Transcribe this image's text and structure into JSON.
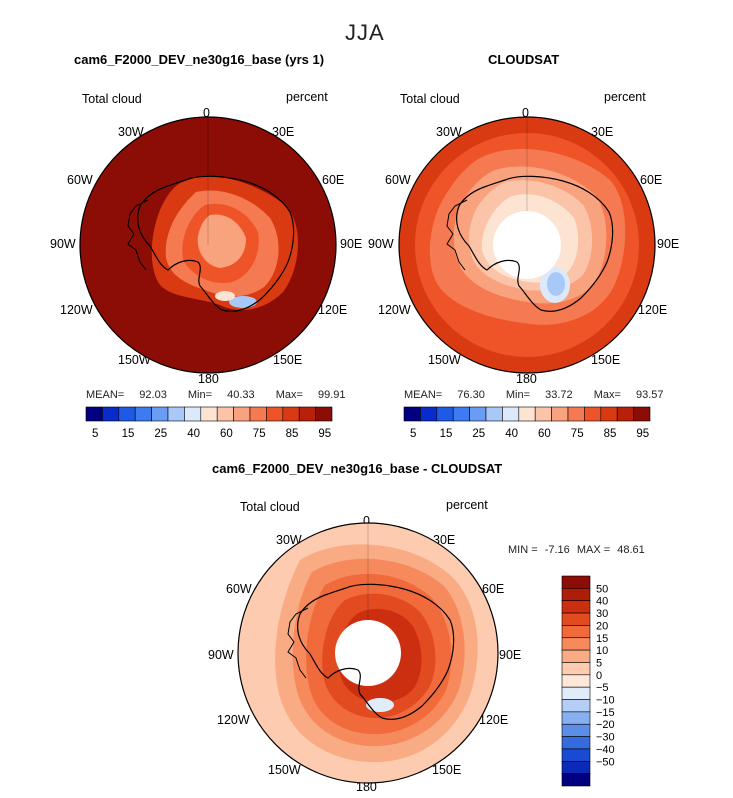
{
  "page_title": "JJA",
  "chart_data": [
    {
      "type": "heatmap",
      "title": "cam6_F2000_DEV_ne30g16_base (yrs 1)",
      "variable": "Total cloud",
      "units": "percent",
      "projection": "polar stereographic (south pole)",
      "longitude_labels": [
        "0",
        "30E",
        "60E",
        "90E",
        "120E",
        "150E",
        "180",
        "150W",
        "120W",
        "90W",
        "60W",
        "30W"
      ],
      "stats": {
        "mean_label": "MEAN=",
        "mean": "92.03",
        "min_label": "Min=",
        "min": "40.33",
        "max_label": "Max=",
        "max": "99.91"
      },
      "colorbar": {
        "orientation": "horizontal",
        "colors": [
          "#000080",
          "#0a2bcc",
          "#1e5ae6",
          "#3c7cf0",
          "#6a9cf4",
          "#a8c8f7",
          "#dce9fa",
          "#fde3d2",
          "#fbc4a8",
          "#f9a27e",
          "#f57a52",
          "#ee5428",
          "#d93a12",
          "#b8200a",
          "#8c0c06"
        ],
        "tick_labels": [
          "5",
          "15",
          "25",
          "40",
          "60",
          "75",
          "85",
          "95"
        ]
      },
      "field_description_levels": {
        "ocean": 97,
        "coast": 85,
        "interior": 78,
        "low_spot": 40
      }
    },
    {
      "type": "heatmap",
      "title": "CLOUDSAT",
      "variable": "Total cloud",
      "units": "percent",
      "projection": "polar stereographic (south pole)",
      "longitude_labels": [
        "0",
        "30E",
        "60E",
        "90E",
        "120E",
        "150E",
        "180",
        "150W",
        "120W",
        "90W",
        "60W",
        "30W"
      ],
      "stats": {
        "mean_label": "MEAN=",
        "mean": "76.30",
        "min_label": "Min=",
        "min": "33.72",
        "max_label": "Max=",
        "max": "93.57"
      },
      "colorbar": {
        "orientation": "horizontal",
        "colors": [
          "#000080",
          "#0a2bcc",
          "#1e5ae6",
          "#3c7cf0",
          "#6a9cf4",
          "#a8c8f7",
          "#dce9fa",
          "#fde3d2",
          "#fbc4a8",
          "#f9a27e",
          "#f57a52",
          "#ee5428",
          "#d93a12",
          "#b8200a",
          "#8c0c06"
        ],
        "tick_labels": [
          "5",
          "15",
          "25",
          "40",
          "60",
          "75",
          "85",
          "95"
        ]
      },
      "field_description_levels": {
        "outer_ocean": 88,
        "mid_ocean": 80,
        "sea_ice": 72,
        "interior": 55,
        "low_spot": 35
      }
    },
    {
      "type": "heatmap",
      "title": "cam6_F2000_DEV_ne30g16_base - CLOUDSAT",
      "variable": "Total cloud",
      "units": "percent",
      "projection": "polar stereographic (south pole)",
      "longitude_labels": [
        "0",
        "30E",
        "60E",
        "90E",
        "120E",
        "150E",
        "180",
        "150W",
        "120W",
        "90W",
        "60W",
        "30W"
      ],
      "stats": {
        "min_label": "MIN =",
        "min": "-7.16",
        "max_label": "MAX =",
        "max": "48.61"
      },
      "colorbar": {
        "orientation": "vertical",
        "colors": [
          "#8c0c06",
          "#b01c0a",
          "#cc2e10",
          "#e24a20",
          "#f06a3c",
          "#f68a5c",
          "#f9ab84",
          "#fccbb0",
          "#fde8da",
          "#e0ecfa",
          "#b4cff5",
          "#88b0f0",
          "#5c8ee8",
          "#346ce0",
          "#1a4ad4",
          "#0c2ab8",
          "#000080"
        ],
        "tick_labels": [
          "50",
          "40",
          "30",
          "20",
          "15",
          "10",
          "5",
          "0",
          "−5",
          "−10",
          "−15",
          "−20",
          "−30",
          "−40",
          "−50"
        ]
      },
      "field_description_levels": {
        "outer": 8,
        "ring": 25,
        "interior": 38
      }
    }
  ]
}
